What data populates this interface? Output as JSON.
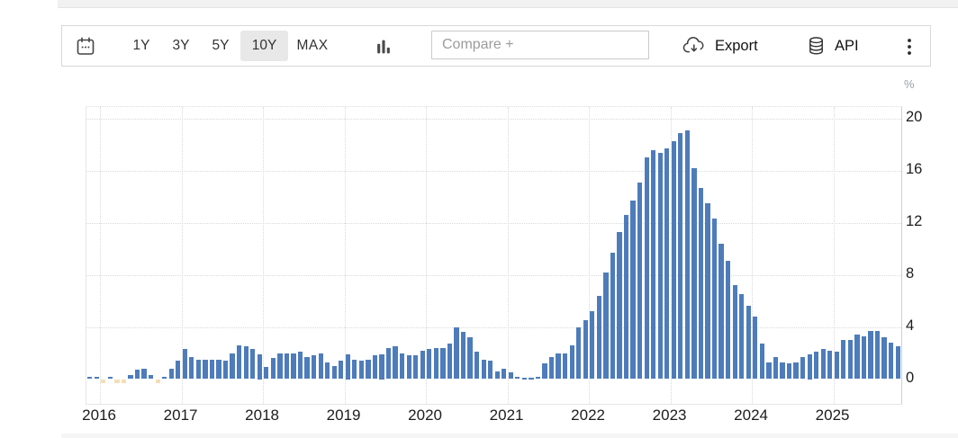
{
  "toolbar": {
    "calendar_icon": "calendar-icon",
    "range_buttons": [
      {
        "label": "1Y",
        "active": false
      },
      {
        "label": "3Y",
        "active": false
      },
      {
        "label": "5Y",
        "active": false
      },
      {
        "label": "10Y",
        "active": true
      },
      {
        "label": "MAX",
        "active": false
      }
    ],
    "chart_type_icon": "bar-chart-icon",
    "compare_input": {
      "value": "",
      "placeholder": "Compare +"
    },
    "export_button": {
      "label": "Export",
      "icon": "cloud-download-icon"
    },
    "api_button": {
      "label": "API",
      "icon": "database-icon"
    },
    "menu_icon": "kebab-menu-icon"
  },
  "chart_data": {
    "type": "bar",
    "title": "",
    "unit": "%",
    "frequency": "monthly",
    "grid": true,
    "legend": "none",
    "y_ticks": [
      0,
      4,
      8,
      12,
      16,
      20
    ],
    "ylim": [
      -1.9,
      20.9
    ],
    "bar_color": "#4e7cba",
    "negative_bar_color": "#f6deb4",
    "x_year_labels": [
      "2016",
      "2017",
      "2018",
      "2019",
      "2020",
      "2021",
      "2022",
      "2023",
      "2024",
      "2025"
    ],
    "months": [
      "2015-11",
      "2015-12",
      "2016-01",
      "2016-02",
      "2016-03",
      "2016-04",
      "2016-05",
      "2016-06",
      "2016-07",
      "2016-08",
      "2016-09",
      "2016-10",
      "2016-11",
      "2016-12",
      "2017-01",
      "2017-02",
      "2017-03",
      "2017-04",
      "2017-05",
      "2017-06",
      "2017-07",
      "2017-08",
      "2017-09",
      "2017-10",
      "2017-11",
      "2017-12",
      "2018-01",
      "2018-02",
      "2018-03",
      "2018-04",
      "2018-05",
      "2018-06",
      "2018-07",
      "2018-08",
      "2018-09",
      "2018-10",
      "2018-11",
      "2018-12",
      "2019-01",
      "2019-02",
      "2019-03",
      "2019-04",
      "2019-05",
      "2019-06",
      "2019-07",
      "2019-08",
      "2019-09",
      "2019-10",
      "2019-11",
      "2019-12",
      "2020-01",
      "2020-02",
      "2020-03",
      "2020-04",
      "2020-05",
      "2020-06",
      "2020-07",
      "2020-08",
      "2020-09",
      "2020-10",
      "2020-11",
      "2020-12",
      "2021-01",
      "2021-02",
      "2021-03",
      "2021-04",
      "2021-05",
      "2021-06",
      "2021-07",
      "2021-08",
      "2021-09",
      "2021-10",
      "2021-11",
      "2021-12",
      "2022-01",
      "2022-02",
      "2022-03",
      "2022-04",
      "2022-05",
      "2022-06",
      "2022-07",
      "2022-08",
      "2022-09",
      "2022-10",
      "2022-11",
      "2022-12",
      "2023-01",
      "2023-02",
      "2023-03",
      "2023-04",
      "2023-05",
      "2023-06",
      "2023-07",
      "2023-08",
      "2023-09",
      "2023-10",
      "2023-11",
      "2023-12",
      "2024-01",
      "2024-02",
      "2024-03",
      "2024-04",
      "2024-05",
      "2024-06",
      "2024-07",
      "2024-08",
      "2024-09",
      "2024-10",
      "2024-11",
      "2024-12",
      "2025-01",
      "2025-02",
      "2025-03",
      "2025-04",
      "2025-05",
      "2025-06",
      "2025-07",
      "2025-08",
      "2025-09",
      "2025-10"
    ],
    "values": [
      0.2,
      0.2,
      -0.3,
      0.2,
      -0.3,
      -0.3,
      0.3,
      0.7,
      0.8,
      0.3,
      -0.3,
      0.2,
      0.8,
      1.4,
      2.3,
      1.7,
      1.5,
      1.5,
      1.5,
      1.5,
      1.4,
      2.0,
      2.6,
      2.5,
      2.3,
      1.9,
      0.9,
      1.6,
      2.0,
      2.0,
      2.0,
      2.1,
      1.7,
      1.8,
      2.0,
      1.3,
      1.0,
      1.4,
      1.9,
      1.5,
      1.4,
      1.5,
      1.8,
      1.9,
      2.4,
      2.5,
      2.0,
      1.8,
      1.8,
      2.2,
      2.3,
      2.4,
      2.4,
      2.7,
      4.0,
      3.6,
      3.2,
      2.1,
      1.5,
      1.4,
      0.6,
      0.8,
      0.5,
      0.2,
      0.1,
      0.1,
      0.2,
      1.2,
      1.7,
      2.0,
      2.0,
      2.6,
      4.0,
      4.5,
      5.2,
      6.4,
      8.2,
      9.7,
      11.3,
      12.6,
      13.7,
      15.1,
      17.0,
      17.6,
      17.4,
      17.7,
      18.3,
      18.9,
      19.1,
      16.2,
      14.7,
      13.5,
      12.3,
      10.4,
      9.1,
      7.2,
      6.5,
      5.6,
      4.8,
      2.7,
      1.3,
      1.7,
      1.3,
      1.2,
      1.3,
      1.7,
      1.9,
      2.1,
      2.3,
      2.2,
      2.1,
      3.0,
      3.0,
      3.4,
      3.3,
      3.7,
      3.7,
      3.2,
      2.8,
      2.5
    ]
  }
}
